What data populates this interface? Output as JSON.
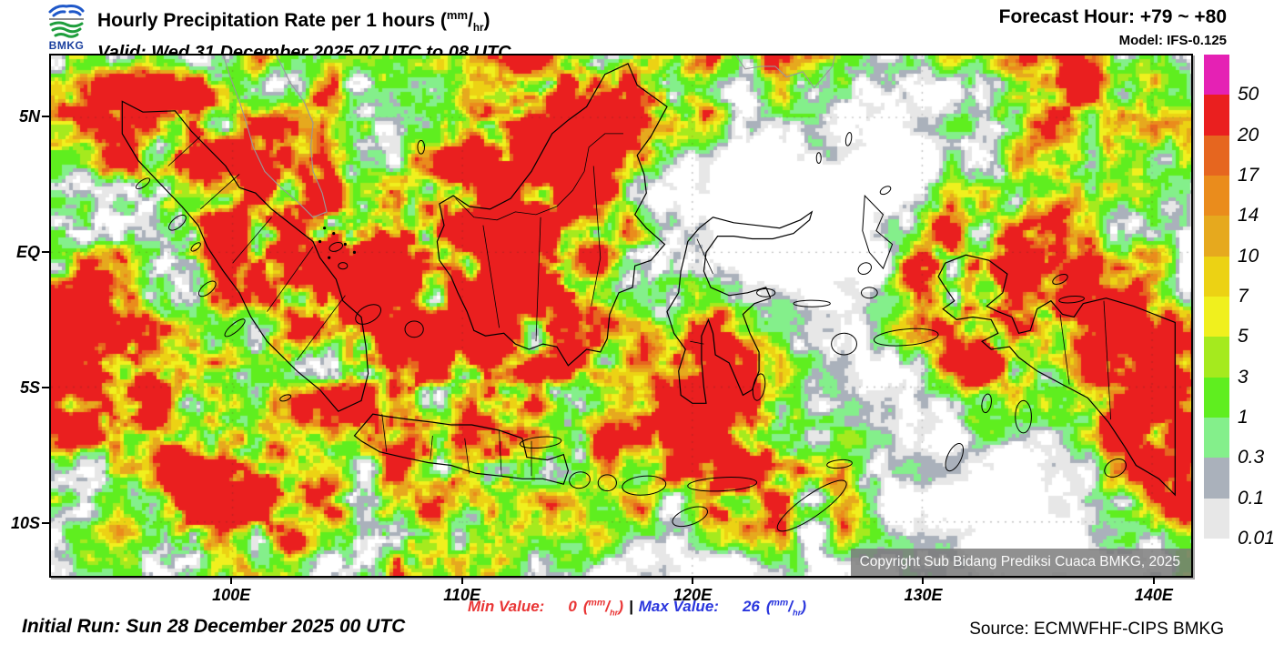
{
  "header": {
    "logo_text": "BMKG",
    "title": "Hourly Precipitation Rate per 1 hours ",
    "valid": "Valid: Wed 31 December 2025 07 UTC to 08 UTC",
    "forecast_hour": "Forecast Hour: +79 ~ +80",
    "model": "Model: IFS-0.125"
  },
  "units": {
    "open": "(",
    "sup": "mm",
    "slash": "/",
    "sub": "hr",
    "close": ")"
  },
  "map": {
    "copyright": "Copyright Sub Bidang Prediksi Cuaca BMKG, 2025",
    "extent": {
      "lon_min": 92.1,
      "lon_max": 141.7,
      "lat_min": -12.0,
      "lat_max": 7.3
    }
  },
  "axes": {
    "x_ticks": [
      {
        "label": "100E",
        "lon": 100
      },
      {
        "label": "110E",
        "lon": 110
      },
      {
        "label": "120E",
        "lon": 120
      },
      {
        "label": "130E",
        "lon": 130
      },
      {
        "label": "140E",
        "lon": 140
      }
    ],
    "y_ticks": [
      {
        "label": "5N",
        "lat": 5
      },
      {
        "label": "EQ",
        "lat": 0
      },
      {
        "label": "5S",
        "lat": -5
      },
      {
        "label": "10S",
        "lat": -10
      }
    ]
  },
  "legend": {
    "labels_top_to_bottom": [
      "50",
      "20",
      "17",
      "14",
      "10",
      "7",
      "5",
      "3",
      "1",
      "0.3",
      "0.1",
      "0.01"
    ],
    "colors_top_to_bottom": [
      "#e521b4",
      "#ea1f1f",
      "#e6661f",
      "#ea8c1c",
      "#e6a91e",
      "#ecd214",
      "#f0f01e",
      "#a5ea1e",
      "#5fee1f",
      "#84ef8b",
      "#aab1bb",
      "#e7e7e7"
    ],
    "below_min_color": "#ffffff"
  },
  "footer": {
    "min_label": "Min Value:",
    "min_value": "0",
    "separator": "|",
    "max_label": "Max Value:",
    "max_value": "26",
    "initial_run": "Initial Run: Sun 28 December 2025 00 UTC",
    "source": "Source: ECMWFHF-CIPS BMKG",
    "min_color": "#e93535",
    "max_color": "#2a36dd"
  }
}
